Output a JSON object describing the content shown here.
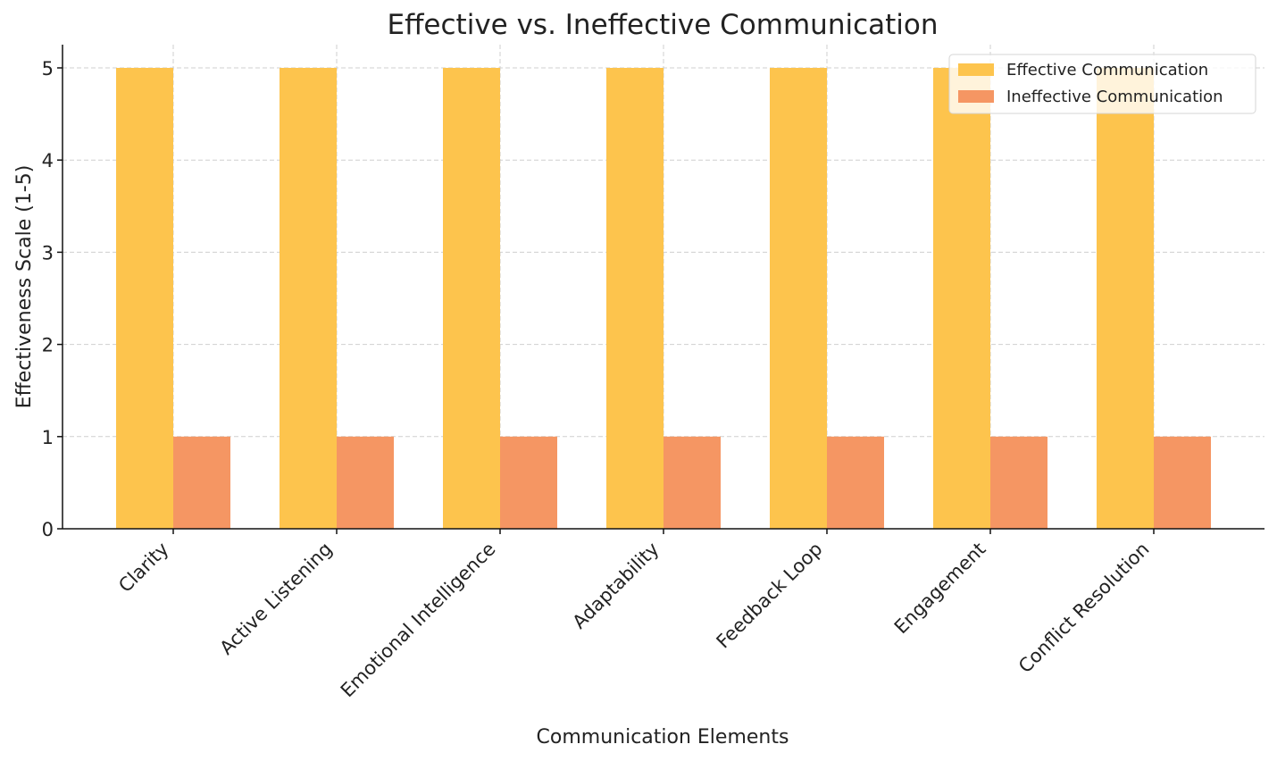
{
  "chart_data": {
    "type": "bar",
    "title": "Effective vs. Ineffective Communication",
    "xlabel": "Communication Elements",
    "ylabel": "Effectiveness Scale (1-5)",
    "categories": [
      "Clarity",
      "Active Listening",
      "Emotional Intelligence",
      "Adaptability",
      "Feedback Loop",
      "Engagement",
      "Conflict Resolution"
    ],
    "series": [
      {
        "name": "Effective Communication",
        "values": [
          5,
          5,
          5,
          5,
          5,
          5,
          5
        ],
        "color": "#fdc44d"
      },
      {
        "name": "Ineffective Communication",
        "values": [
          1,
          1,
          1,
          1,
          1,
          1,
          1
        ],
        "color": "#f59663"
      }
    ],
    "yticks": [
      0,
      1,
      2,
      3,
      4,
      5
    ],
    "ylim": [
      0,
      5.25
    ],
    "grid": true,
    "legend_position": "top-right"
  }
}
